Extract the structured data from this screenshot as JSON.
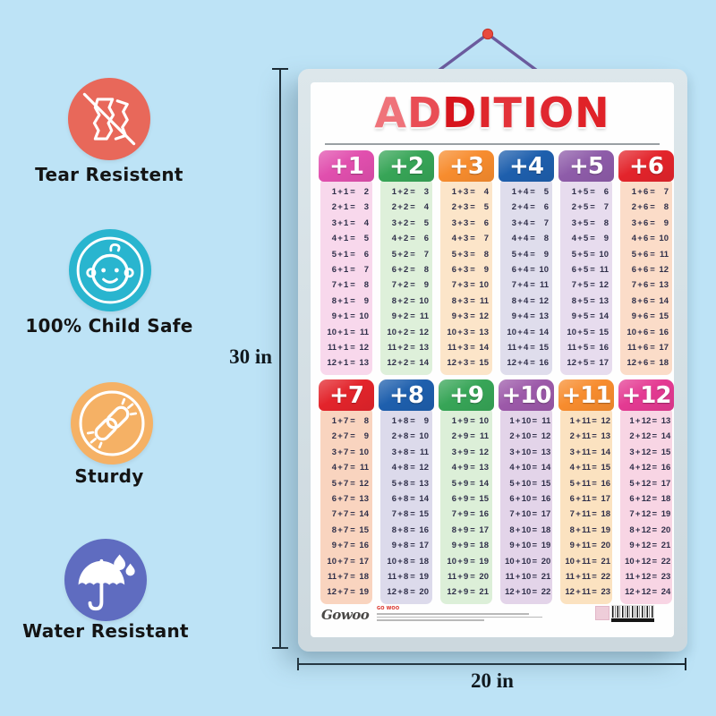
{
  "badges": [
    {
      "label": "Tear Resistent",
      "icon": "no-tear-icon",
      "color": "#e8685a"
    },
    {
      "label": "100% Child Safe",
      "icon": "baby-face-icon",
      "color": "#29b5cf"
    },
    {
      "label": "Sturdy",
      "icon": "chain-link-icon",
      "color": "#f5b165"
    },
    {
      "label": "Water Resistant",
      "icon": "umbrella-icon",
      "color": "#5f6cc0"
    }
  ],
  "dimensions": {
    "height_label": "30 in",
    "width_label": "20 in"
  },
  "poster": {
    "title": "ADDITION",
    "title_letter_colors": [
      "#ef737a",
      "#e94d55",
      "#d7141c",
      "#df262c",
      "#e33239",
      "#df262c",
      "#e02730",
      "#e02228"
    ],
    "brand": {
      "logo_text": "Gowoo",
      "publisher": "GO WOO"
    },
    "tables": [
      {
        "header": "+1",
        "header_color": "#e14fae",
        "body_color": "#f8d8ec",
        "rows": [
          "1 + 1 = 2",
          "2 + 1 = 3",
          "3 + 1 = 4",
          "4 + 1 = 5",
          "5 + 1 = 6",
          "6 + 1 = 7",
          "7 + 1 = 8",
          "8 + 1 = 9",
          "9 + 1 = 10",
          "10 + 1 = 11",
          "11 + 1 = 12",
          "12 + 1 = 13"
        ]
      },
      {
        "header": "+2",
        "header_color": "#37a557",
        "body_color": "#def0da",
        "rows": [
          "1 + 2 = 3",
          "2 + 2 = 4",
          "3 + 2 = 5",
          "4 + 2 = 6",
          "5 + 2 = 7",
          "6 + 2 = 8",
          "7 + 2 = 9",
          "8 + 2 = 10",
          "9 + 2 = 11",
          "10 + 2 = 12",
          "11 + 2 = 13",
          "12 + 2 = 14"
        ]
      },
      {
        "header": "+3",
        "header_color": "#f78c2e",
        "body_color": "#fce5c9",
        "rows": [
          "1 + 3 = 4",
          "2 + 3 = 5",
          "3 + 3 = 6",
          "4 + 3 = 7",
          "5 + 3 = 8",
          "6 + 3 = 9",
          "7 + 3 = 10",
          "8 + 3 = 11",
          "9 + 3 = 12",
          "10 + 3 = 13",
          "11 + 3 = 14",
          "12 + 3 = 15"
        ]
      },
      {
        "header": "+4",
        "header_color": "#1e5fad",
        "body_color": "#dfddec",
        "rows": [
          "1 + 4 = 5",
          "2 + 4 = 6",
          "3 + 4 = 7",
          "4 + 4 = 8",
          "5 + 4 = 9",
          "6 + 4 = 10",
          "7 + 4 = 11",
          "8 + 4 = 12",
          "9 + 4 = 13",
          "10 + 4 = 14",
          "11 + 4 = 15",
          "12 + 4 = 16"
        ]
      },
      {
        "header": "+5",
        "header_color": "#8e5ca9",
        "body_color": "#e7dcee",
        "rows": [
          "1 + 5 = 6",
          "2 + 5 = 7",
          "3 + 5 = 8",
          "4 + 5 = 9",
          "5 + 5 = 10",
          "6 + 5 = 11",
          "7 + 5 = 12",
          "8 + 5 = 13",
          "9 + 5 = 14",
          "10 + 5 = 15",
          "11 + 5 = 16",
          "12 + 5 = 17"
        ]
      },
      {
        "header": "+6",
        "header_color": "#e3242b",
        "body_color": "#fbdcc8",
        "rows": [
          "1 + 6 = 7",
          "2 + 6 = 8",
          "3 + 6 = 9",
          "4 + 6 = 10",
          "5 + 6 = 11",
          "6 + 6 = 12",
          "7 + 6 = 13",
          "8 + 6 = 14",
          "9 + 6 = 15",
          "10 + 6 = 16",
          "11 + 6 = 17",
          "12 + 6 = 18"
        ]
      },
      {
        "header": "+7",
        "header_color": "#e3242b",
        "body_color": "#f9d4bf",
        "rows": [
          "1 + 7 = 8",
          "2 + 7 = 9",
          "3 + 7 = 10",
          "4 + 7 = 11",
          "5 + 7 = 12",
          "6 + 7 = 13",
          "7 + 7 = 14",
          "8 + 7 = 15",
          "9 + 7 = 16",
          "10 + 7 = 17",
          "11 + 7 = 18",
          "12 + 7 = 19"
        ]
      },
      {
        "header": "+8",
        "header_color": "#1e5fad",
        "body_color": "#dcdaeb",
        "rows": [
          "1 + 8 = 9",
          "2 + 8 = 10",
          "3 + 8 = 11",
          "4 + 8 = 12",
          "5 + 8 = 13",
          "6 + 8 = 14",
          "7 + 8 = 15",
          "8 + 8 = 16",
          "9 + 8 = 17",
          "10 + 8 = 18",
          "11 + 8 = 19",
          "12 + 8 = 20"
        ]
      },
      {
        "header": "+9",
        "header_color": "#37a557",
        "body_color": "#dcefd8",
        "rows": [
          "1 + 9 = 10",
          "2 + 9 = 11",
          "3 + 9 = 12",
          "4 + 9 = 13",
          "5 + 9 = 14",
          "6 + 9 = 15",
          "7 + 9 = 16",
          "8 + 9 = 17",
          "9 + 9 = 18",
          "10 + 9 = 19",
          "11 + 9 = 20",
          "12 + 9 = 21"
        ]
      },
      {
        "header": "+10",
        "header_color": "#9c59a9",
        "body_color": "#e3d4e9",
        "rows": [
          "1 + 10 = 11",
          "2 + 10 = 12",
          "3 + 10 = 13",
          "4 + 10 = 14",
          "5 + 10 = 15",
          "6 + 10 = 16",
          "7 + 10 = 17",
          "8 + 10 = 18",
          "9 + 10 = 19",
          "10 + 10 = 20",
          "11 + 10 = 21",
          "12 + 10 = 22"
        ]
      },
      {
        "header": "+11",
        "header_color": "#f78c2e",
        "body_color": "#fbe2c0",
        "rows": [
          "1 + 11 = 12",
          "2 + 11 = 13",
          "3 + 11 = 14",
          "4 + 11 = 15",
          "5 + 11 = 16",
          "6 + 11 = 17",
          "7 + 11 = 18",
          "8 + 11 = 19",
          "9 + 11 = 20",
          "10 + 11 = 21",
          "11 + 11 = 22",
          "12 + 11 = 23"
        ]
      },
      {
        "header": "+12",
        "header_color": "#e43a92",
        "body_color": "#f8d5e4",
        "rows": [
          "1 + 12 = 13",
          "2 + 12 = 14",
          "3 + 12 = 15",
          "4 + 12 = 16",
          "5 + 12 = 17",
          "6 + 12 = 18",
          "7 + 12 = 19",
          "8 + 12 = 20",
          "9 + 12 = 21",
          "10 + 12 = 22",
          "11 + 12 = 23",
          "12 + 12 = 24"
        ]
      }
    ]
  },
  "colors": {
    "background": "#bde3f6",
    "frame": "#d4dfe4",
    "string": "#6b5b9e",
    "pin": "#e94a3d",
    "equation_text": "#30304a"
  }
}
